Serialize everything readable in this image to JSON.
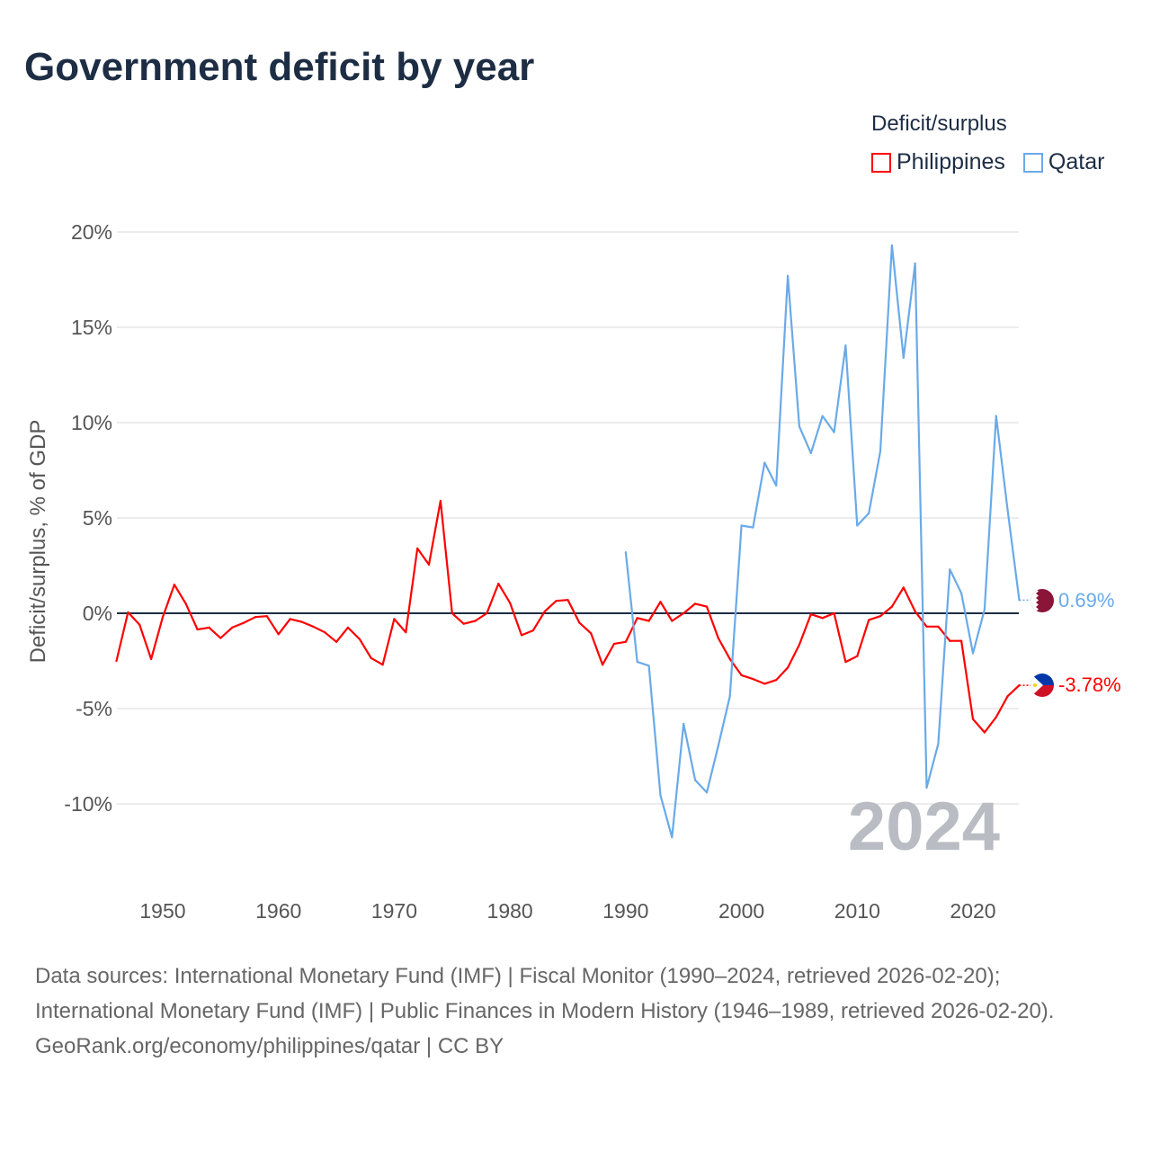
{
  "title": "Government deficit by year",
  "legend": {
    "title": "Deficit/surplus",
    "items": [
      {
        "label": "Philippines",
        "color": "#ff0000"
      },
      {
        "label": "Qatar",
        "color": "#6aaae8"
      }
    ]
  },
  "watermark_year": "2024",
  "end_labels": {
    "qatar": "0.69%",
    "philippines": "-3.78%"
  },
  "footer": {
    "sources": "Data sources: International Monetary Fund (IMF) | Fiscal Monitor (1990–2024, retrieved 2026-02-20); International Monetary Fund (IMF) | Public Finances in Modern History (1946–1989, retrieved 2026-02-20).",
    "credit": "GeoRank.org/economy/philippines/qatar | CC BY"
  },
  "chart_data": {
    "type": "line",
    "title": "Government deficit by year",
    "xlabel": "",
    "ylabel": "Deficit/surplus, % of GDP",
    "xlim": [
      1946,
      2024
    ],
    "ylim": [
      -13,
      20.5
    ],
    "x_ticks": [
      1950,
      1960,
      1970,
      1980,
      1990,
      2000,
      2010,
      2020
    ],
    "x_tick_labels": [
      "1950",
      "1960",
      "1970",
      "1980",
      "1990",
      "2000",
      "2010",
      "2020"
    ],
    "y_ticks": [
      20,
      15,
      10,
      5,
      0,
      -5,
      -10
    ],
    "y_tick_labels": [
      "20%",
      "15%",
      "10%",
      "5%",
      "0%",
      "-5%",
      "-10%"
    ],
    "grid": true,
    "legend_position": "top-right",
    "series": [
      {
        "name": "Philippines",
        "color": "#ff0000",
        "start_year": 1946,
        "values": [
          -2.5,
          0.05,
          -0.6,
          -2.4,
          -0.2,
          1.5,
          0.5,
          -0.85,
          -0.75,
          -1.3,
          -0.75,
          -0.5,
          -0.2,
          -0.15,
          -1.1,
          -0.3,
          -0.45,
          -0.7,
          -1.0,
          -1.5,
          -0.75,
          -1.35,
          -2.35,
          -2.7,
          -0.3,
          -1.0,
          3.4,
          2.55,
          5.9,
          0,
          -0.55,
          -0.4,
          0,
          1.55,
          0.55,
          -1.15,
          -0.9,
          0.1,
          0.65,
          0.7,
          -0.5,
          -1.05,
          -2.7,
          -1.6,
          -1.5,
          -0.25,
          -0.4,
          0.6,
          -0.4,
          0,
          0.5,
          0.35,
          -1.3,
          -2.4,
          -3.25,
          -3.45,
          -3.7,
          -3.5,
          -2.85,
          -1.65,
          -0.05,
          -0.25,
          0,
          -2.55,
          -2.25,
          -0.35,
          -0.15,
          0.35,
          1.35,
          0.1,
          -0.7,
          -0.7,
          -1.45,
          -1.45,
          -5.55,
          -6.25,
          -5.45,
          -4.35,
          -3.78
        ]
      },
      {
        "name": "Qatar",
        "color": "#6aaae8",
        "start_year": 1990,
        "values": [
          3.2,
          -2.55,
          -2.75,
          -9.55,
          -11.75,
          -5.8,
          -8.75,
          -9.4,
          -6.95,
          -4.35,
          4.6,
          4.5,
          7.9,
          6.7,
          17.7,
          9.8,
          8.4,
          10.35,
          9.5,
          14.05,
          4.6,
          5.25,
          8.5,
          19.3,
          13.4,
          18.35,
          -9.15,
          -6.85,
          2.3,
          1.05,
          -2.1,
          0.2,
          10.35,
          5.4,
          0.69
        ]
      }
    ]
  }
}
